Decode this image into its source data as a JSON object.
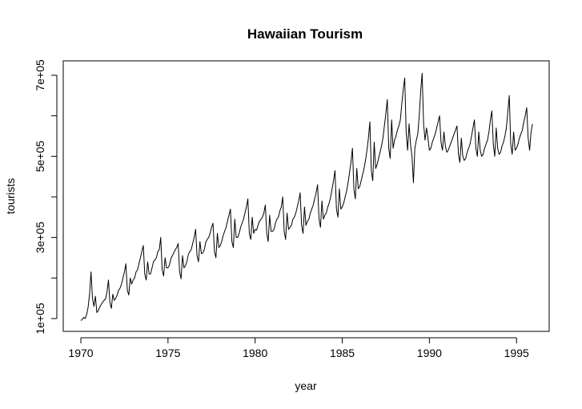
{
  "chart_data": {
    "type": "line",
    "title": "Hawaiian Tourism",
    "xlabel": "year",
    "ylabel": "tourists",
    "xlim": [
      1970,
      1996
    ],
    "ylim": [
      90000,
      705000
    ],
    "x_ticks": [
      1970,
      1975,
      1980,
      1985,
      1990,
      1995
    ],
    "x_tick_labels": [
      "1970",
      "1975",
      "1980",
      "1985",
      "1990",
      "1995"
    ],
    "y_ticks": [
      100000,
      300000,
      500000,
      700000
    ],
    "y_tick_labels": [
      "1e+05",
      "3e+05",
      "5e+05",
      "7e+05"
    ],
    "y_minor_ticks": [
      200000,
      400000,
      600000
    ],
    "frequency": 12,
    "start": 1970,
    "color": "#000000",
    "series": [
      {
        "values": [
          95000,
          98000,
          103000,
          100000,
          110000,
          128000,
          160000,
          215000,
          150000,
          130000,
          155000,
          115000,
          120000,
          128000,
          135000,
          140000,
          145000,
          148000,
          165000,
          195000,
          140000,
          125000,
          160000,
          145000,
          150000,
          158000,
          170000,
          175000,
          185000,
          200000,
          215000,
          235000,
          170000,
          158000,
          200000,
          185000,
          195000,
          200000,
          215000,
          220000,
          235000,
          250000,
          265000,
          280000,
          210000,
          195000,
          240000,
          210000,
          210000,
          225000,
          240000,
          245000,
          250000,
          265000,
          270000,
          300000,
          220000,
          205000,
          250000,
          225000,
          225000,
          232000,
          248000,
          255000,
          262000,
          270000,
          275000,
          285000,
          215000,
          198000,
          255000,
          225000,
          230000,
          240000,
          258000,
          265000,
          270000,
          285000,
          300000,
          320000,
          255000,
          240000,
          290000,
          260000,
          262000,
          270000,
          288000,
          295000,
          300000,
          310000,
          325000,
          335000,
          265000,
          250000,
          310000,
          275000,
          280000,
          290000,
          305000,
          315000,
          325000,
          340000,
          355000,
          370000,
          290000,
          275000,
          345000,
          300000,
          300000,
          310000,
          325000,
          335000,
          345000,
          360000,
          375000,
          395000,
          310000,
          295000,
          350000,
          310000,
          320000,
          318000,
          330000,
          340000,
          345000,
          350000,
          360000,
          380000,
          310000,
          290000,
          355000,
          315000,
          315000,
          320000,
          335000,
          345000,
          350000,
          365000,
          375000,
          400000,
          315000,
          295000,
          360000,
          320000,
          325000,
          330000,
          345000,
          350000,
          360000,
          375000,
          390000,
          410000,
          330000,
          310000,
          375000,
          330000,
          340000,
          345000,
          360000,
          370000,
          380000,
          395000,
          410000,
          430000,
          345000,
          325000,
          390000,
          345000,
          355000,
          360000,
          375000,
          385000,
          400000,
          420000,
          440000,
          465000,
          370000,
          350000,
          420000,
          370000,
          375000,
          385000,
          400000,
          415000,
          435000,
          460000,
          485000,
          520000,
          420000,
          395000,
          470000,
          420000,
          425000,
          440000,
          455000,
          470000,
          490000,
          515000,
          545000,
          585000,
          465000,
          440000,
          535000,
          470000,
          480000,
          495000,
          510000,
          525000,
          545000,
          575000,
          605000,
          640000,
          520000,
          495000,
          590000,
          520000,
          540000,
          550000,
          565000,
          575000,
          590000,
          630000,
          665000,
          693000,
          560000,
          515000,
          580000,
          530000,
          500000,
          435000,
          520000,
          540000,
          555000,
          600000,
          660000,
          705000,
          580000,
          540000,
          570000,
          545000,
          515000,
          520000,
          535000,
          545000,
          555000,
          570000,
          585000,
          600000,
          535000,
          515000,
          560000,
          525000,
          510000,
          515000,
          525000,
          535000,
          545000,
          555000,
          565000,
          575000,
          505000,
          485000,
          545000,
          500000,
          490000,
          495000,
          510000,
          520000,
          530000,
          550000,
          570000,
          590000,
          520000,
          500000,
          560000,
          515000,
          500000,
          505000,
          520000,
          530000,
          540000,
          560000,
          590000,
          612000,
          530000,
          500000,
          570000,
          520000,
          505000,
          510000,
          525000,
          535000,
          550000,
          570000,
          610000,
          650000,
          530000,
          505000,
          560000,
          515000,
          520000,
          530000,
          545000,
          555000,
          565000,
          585000,
          600000,
          620000,
          545000,
          515000,
          560000,
          580000
        ]
      }
    ]
  }
}
